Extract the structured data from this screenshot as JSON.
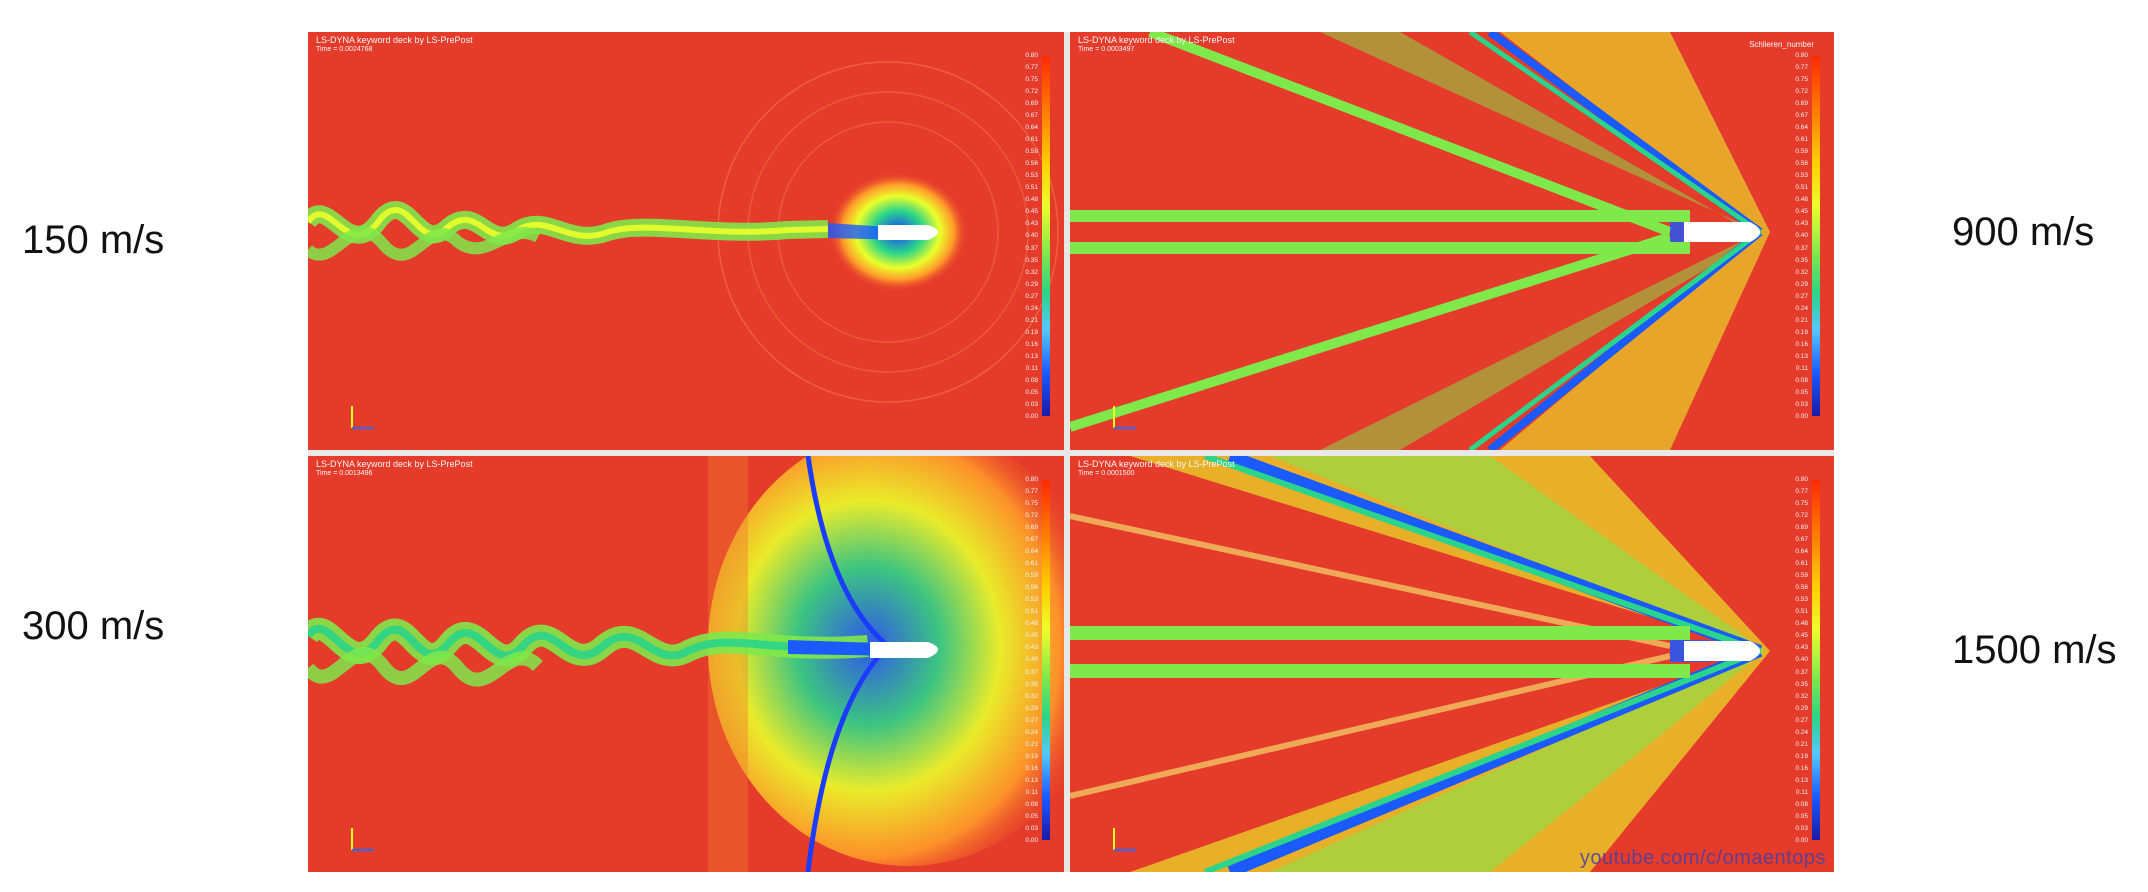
{
  "labels": {
    "p150": "150 m/s",
    "p300": "300 m/s",
    "p900": "900 m/s",
    "p1500": "1500 m/s"
  },
  "panels": {
    "p150": {
      "header": "LS-DYNA keyword deck by LS-PrePost",
      "time": "Time = 0.0024768"
    },
    "p900": {
      "header": "LS-DYNA keyword deck by LS-PrePost",
      "time": "Time = 0.0003497",
      "legend_title": "Schlieren_number"
    },
    "p300": {
      "header": "LS-DYNA keyword deck by LS-PrePost",
      "time": "Time = 0.0013496"
    },
    "p1500": {
      "header": "LS-DYNA keyword deck by LS-PrePost",
      "time": "Time = 0.0001500"
    }
  },
  "colorbar_ticks": [
    "0.80",
    "0.77",
    "0.75",
    "0.72",
    "0.69",
    "0.67",
    "0.64",
    "0.61",
    "0.59",
    "0.56",
    "0.53",
    "0.51",
    "0.48",
    "0.45",
    "0.43",
    "0.40",
    "0.37",
    "0.35",
    "0.32",
    "0.29",
    "0.27",
    "0.24",
    "0.21",
    "0.19",
    "0.16",
    "0.13",
    "0.11",
    "0.08",
    "0.05",
    "0.03",
    "0.00"
  ],
  "watermark": "youtube.com/c/omaentops",
  "colors": {
    "background_field": "#e53b2a",
    "shock_blue": "#1b5aff",
    "wake_green": "#7fe84a",
    "mid_yellow": "#eaff2a"
  }
}
